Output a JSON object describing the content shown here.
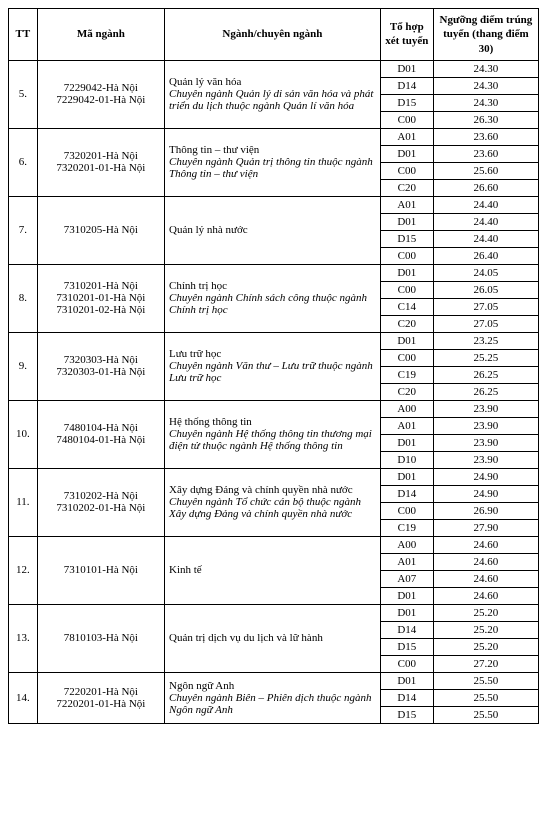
{
  "headers": {
    "tt": "TT",
    "code": "Mã ngành",
    "major": "Ngành/chuyên ngành",
    "combo": "Tổ hợp xét tuyển",
    "score": "Ngưỡng điểm trúng tuyển (thang điểm 30)"
  },
  "rows": [
    {
      "tt": "5.",
      "codes": [
        "7229042-Hà Nội",
        "7229042-01-Hà Nội"
      ],
      "major_main": "Quản lý văn hóa",
      "major_italic": "Chuyên ngành Quản lý di sản văn hóa và phát triển du lịch thuộc ngành Quản lí văn hóa",
      "scores": [
        {
          "combo": "D01",
          "score": "24.30"
        },
        {
          "combo": "D14",
          "score": "24.30"
        },
        {
          "combo": "D15",
          "score": "24.30"
        },
        {
          "combo": "C00",
          "score": "26.30"
        }
      ]
    },
    {
      "tt": "6.",
      "codes": [
        "7320201-Hà Nội",
        "7320201-01-Hà Nội"
      ],
      "major_main": "Thông tin – thư viện",
      "major_italic": "Chuyên ngành Quản trị thông tin thuộc ngành Thông tin – thư viện",
      "scores": [
        {
          "combo": "A01",
          "score": "23.60"
        },
        {
          "combo": "D01",
          "score": "23.60"
        },
        {
          "combo": "C00",
          "score": "25.60"
        },
        {
          "combo": "C20",
          "score": "26.60"
        }
      ]
    },
    {
      "tt": "7.",
      "codes": [
        "7310205-Hà Nội"
      ],
      "major_main": "Quản lý nhà nước",
      "major_italic": "",
      "scores": [
        {
          "combo": "A01",
          "score": "24.40"
        },
        {
          "combo": "D01",
          "score": "24.40"
        },
        {
          "combo": "D15",
          "score": "24.40"
        },
        {
          "combo": "C00",
          "score": "26.40"
        }
      ]
    },
    {
      "tt": "8.",
      "codes": [
        "7310201-Hà Nội",
        "7310201-01-Hà Nội",
        "7310201-02-Hà Nội"
      ],
      "major_main": "Chính trị học",
      "major_italic": "Chuyên ngành Chính sách công thuộc ngành Chính trị học",
      "scores": [
        {
          "combo": "D01",
          "score": "24.05"
        },
        {
          "combo": "C00",
          "score": "26.05"
        },
        {
          "combo": "C14",
          "score": "27.05"
        },
        {
          "combo": "C20",
          "score": "27.05"
        }
      ]
    },
    {
      "tt": "9.",
      "codes": [
        "7320303-Hà Nội",
        "7320303-01-Hà Nội"
      ],
      "major_main": "Lưu trữ học",
      "major_italic": "Chuyên ngành Văn thư – Lưu trữ thuộc ngành Lưu trữ học",
      "scores": [
        {
          "combo": "D01",
          "score": "23.25"
        },
        {
          "combo": "C00",
          "score": "25.25"
        },
        {
          "combo": "C19",
          "score": "26.25"
        },
        {
          "combo": "C20",
          "score": "26.25"
        }
      ]
    },
    {
      "tt": "10.",
      "codes": [
        "7480104-Hà Nội",
        "7480104-01-Hà Nội"
      ],
      "major_main": "Hệ thống thông tin",
      "major_italic": "Chuyên ngành Hệ thống thông tin thương mại điện tử thuộc ngành Hệ thống thông tin",
      "scores": [
        {
          "combo": "A00",
          "score": "23.90"
        },
        {
          "combo": "A01",
          "score": "23.90"
        },
        {
          "combo": "D01",
          "score": "23.90"
        },
        {
          "combo": "D10",
          "score": "23.90"
        }
      ]
    },
    {
      "tt": "11.",
      "codes": [
        "7310202-Hà Nội",
        "7310202-01-Hà Nội"
      ],
      "major_main": "Xây dựng Đảng và chính quyền nhà nước",
      "major_italic": "Chuyên ngành Tổ chức cán bộ thuộc ngành Xây dựng Đảng và chính quyền nhà nước",
      "scores": [
        {
          "combo": "D01",
          "score": "24.90"
        },
        {
          "combo": "D14",
          "score": "24.90"
        },
        {
          "combo": "C00",
          "score": "26.90"
        },
        {
          "combo": "C19",
          "score": "27.90"
        }
      ]
    },
    {
      "tt": "12.",
      "codes": [
        "7310101-Hà Nội"
      ],
      "major_main": "Kinh tế",
      "major_italic": "",
      "scores": [
        {
          "combo": "A00",
          "score": "24.60"
        },
        {
          "combo": "A01",
          "score": "24.60"
        },
        {
          "combo": "A07",
          "score": "24.60"
        },
        {
          "combo": "D01",
          "score": "24.60"
        }
      ]
    },
    {
      "tt": "13.",
      "codes": [
        "7810103-Hà Nội"
      ],
      "major_main": "Quản trị dịch vụ du lịch và lữ hành",
      "major_italic": "",
      "scores": [
        {
          "combo": "D01",
          "score": "25.20"
        },
        {
          "combo": "D14",
          "score": "25.20"
        },
        {
          "combo": "D15",
          "score": "25.20"
        },
        {
          "combo": "C00",
          "score": "27.20"
        }
      ]
    },
    {
      "tt": "14.",
      "codes": [
        "7220201-Hà Nội",
        "7220201-01-Hà Nội"
      ],
      "major_main": "Ngôn ngữ Anh",
      "major_italic": "Chuyên ngành Biên – Phiên dịch thuộc ngành Ngôn ngữ Anh",
      "scores": [
        {
          "combo": "D01",
          "score": "25.50"
        },
        {
          "combo": "D14",
          "score": "25.50"
        },
        {
          "combo": "D15",
          "score": "25.50"
        }
      ]
    }
  ]
}
